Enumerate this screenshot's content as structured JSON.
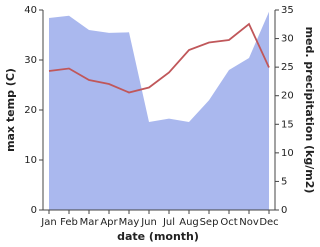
{
  "chart_data": {
    "type": "line-area",
    "x_label": "date (month)",
    "y_label": "max temp (C)",
    "y2_label": "med. precipitation (kg/m2)",
    "categories": [
      "Jan",
      "Feb",
      "Mar",
      "Apr",
      "May",
      "Jun",
      "Jul",
      "Aug",
      "Sep",
      "Oct",
      "Nov",
      "Dec"
    ],
    "series": [
      {
        "name": "max temp",
        "color": "#c0575a",
        "values": [
          27.8,
          28.3,
          26,
          25.2,
          23.5,
          24.5,
          27.5,
          32,
          33.5,
          34,
          37.2,
          28.5
        ]
      },
      {
        "name": "med. precipitation",
        "color": "#aab8ee",
        "axis": "y2",
        "values": [
          33.6,
          34,
          31.5,
          31,
          31.1,
          15.4,
          16,
          15.4,
          19.2,
          24.5,
          26.6,
          34.7
        ]
      }
    ],
    "ylim": [
      0,
      40
    ],
    "yticks": [
      0,
      10,
      20,
      30,
      40
    ],
    "y2lim": [
      0,
      35
    ],
    "y2ticks": [
      0,
      5,
      10,
      15,
      20,
      25,
      30,
      35
    ]
  }
}
